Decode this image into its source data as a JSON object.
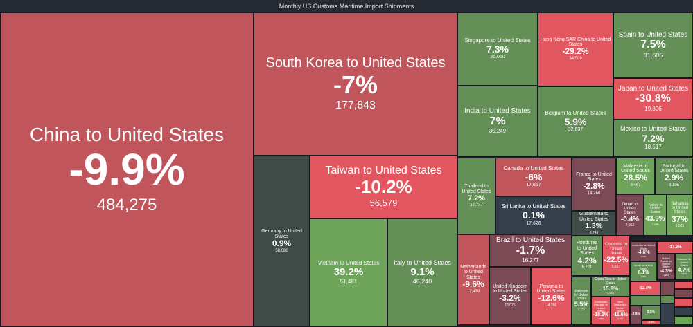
{
  "title": "Monthly US Customs Maritime Import Shipments",
  "colors": {
    "red_dark": "#c0565c",
    "red_bright": "#e2565f",
    "green": "#648f57",
    "green_bright": "#6ea55b",
    "neutral_dark": "#3e4b47",
    "slate": "#36404c",
    "maroon": "#7c4a55"
  },
  "chart_data": {
    "type": "treemap",
    "title": "Monthly US Customs Maritime Import Shipments",
    "cells": [
      {
        "name": "China to United States",
        "pct": "-9.9%",
        "value": "484,275"
      },
      {
        "name": "South Korea to United States",
        "pct": "-7%",
        "value": "177,843"
      },
      {
        "name": "Germany to United States",
        "pct": "0.9%",
        "value": "58,080"
      },
      {
        "name": "Taiwan to United States",
        "pct": "-10.2%",
        "value": "56,579"
      },
      {
        "name": "Vietnam to United States",
        "pct": "39.2%",
        "value": "51,481"
      },
      {
        "name": "Italy to United States",
        "pct": "9.1%",
        "value": "46,240"
      },
      {
        "name": "Singapore to United States",
        "pct": "7.3%",
        "value": "36,060"
      },
      {
        "name": "Hong Kong SAR China to United States",
        "pct": "-29.2%",
        "value": "34,009"
      },
      {
        "name": "Spain to United States",
        "pct": "7.5%",
        "value": "31,605"
      },
      {
        "name": "Japan to United States",
        "pct": "-30.8%",
        "value": "19,826"
      },
      {
        "name": "Mexico to United States",
        "pct": "7.2%",
        "value": "18,517"
      },
      {
        "name": "India to United States",
        "pct": "7%",
        "value": "35,249"
      },
      {
        "name": "Belgium to United States",
        "pct": "5.9%",
        "value": "32,637"
      },
      {
        "name": "Thailand to United States",
        "pct": "7.2%",
        "value": "17,737"
      },
      {
        "name": "Canada to United States",
        "pct": "-6%",
        "value": "17,667"
      },
      {
        "name": "Sri Lanka to United States",
        "pct": "0.1%",
        "value": "17,626"
      },
      {
        "name": "France to United States",
        "pct": "-2.8%",
        "value": "14,260"
      },
      {
        "name": "Guatemala to United States",
        "pct": "1.3%",
        "value": "8,749"
      },
      {
        "name": "Malaysia to United States",
        "pct": "28.5%",
        "value": "8,467"
      },
      {
        "name": "Portugal to United States",
        "pct": "2.9%",
        "value": "8,105"
      },
      {
        "name": "Oman to United States",
        "pct": "-0.4%",
        "value": "7,962"
      },
      {
        "name": "Turkey to United States",
        "pct": "43.9%",
        "value": "7,136"
      },
      {
        "name": "Bahamas to United States",
        "pct": "37%",
        "value": "6,985"
      },
      {
        "name": "Netherlands to United States",
        "pct": "-9.6%",
        "value": "17,439"
      },
      {
        "name": "Brazil to United States",
        "pct": "-1.7%",
        "value": "16,277"
      },
      {
        "name": "United Kingdom to United States",
        "pct": "-3.2%",
        "value": "16,075"
      },
      {
        "name": "Panama to United States",
        "pct": "-12.6%",
        "value": "14,386"
      },
      {
        "name": "Honduras to United States",
        "pct": "4.2%",
        "value": "6,721"
      },
      {
        "name": "Colombia to United States",
        "pct": "-22.5%",
        "value": "5,827"
      },
      {
        "name": "Pakistan to United States",
        "pct": "5.5%",
        "value": "5,727"
      },
      {
        "name": "Costa Rica to United States",
        "pct": "15.8%",
        "value": "4,593"
      },
      {
        "name": "Dominican Republic to United States",
        "pct": "-18.2%",
        "value": "3,555"
      },
      {
        "name": "New Zealand to United States",
        "pct": "-11.6%",
        "value": "3,454"
      },
      {
        "name": "Australia to United States",
        "pct": "-4.6%",
        "value": "3,993"
      },
      {
        "name": "Israel to United States",
        "pct": "6.1%",
        "value": "3,991"
      },
      {
        "name": "",
        "pct": "-17.2%",
        "value": ""
      },
      {
        "name": "United States to United States",
        "pct": "-4.3%",
        "value": "3,905"
      },
      {
        "name": "Ecuador to United States",
        "pct": "4.7%",
        "value": "3,626"
      },
      {
        "name": "",
        "pct": "-12.4%",
        "value": ""
      },
      {
        "name": "",
        "pct": "",
        "value": ""
      },
      {
        "name": "",
        "pct": "-8.8%",
        "value": ""
      },
      {
        "name": "",
        "pct": "9.5%",
        "value": ""
      },
      {
        "name": "",
        "pct": "-8.4%",
        "value": ""
      },
      {
        "name": "",
        "pct": "",
        "value": ""
      },
      {
        "name": "",
        "pct": "",
        "value": ""
      },
      {
        "name": "",
        "pct": "",
        "value": ""
      },
      {
        "name": "",
        "pct": "",
        "value": ""
      },
      {
        "name": "",
        "pct": "",
        "value": ""
      },
      {
        "name": "",
        "pct": "",
        "value": ""
      },
      {
        "name": "",
        "pct": "",
        "value": ""
      },
      {
        "name": "",
        "pct": "",
        "value": ""
      }
    ]
  }
}
